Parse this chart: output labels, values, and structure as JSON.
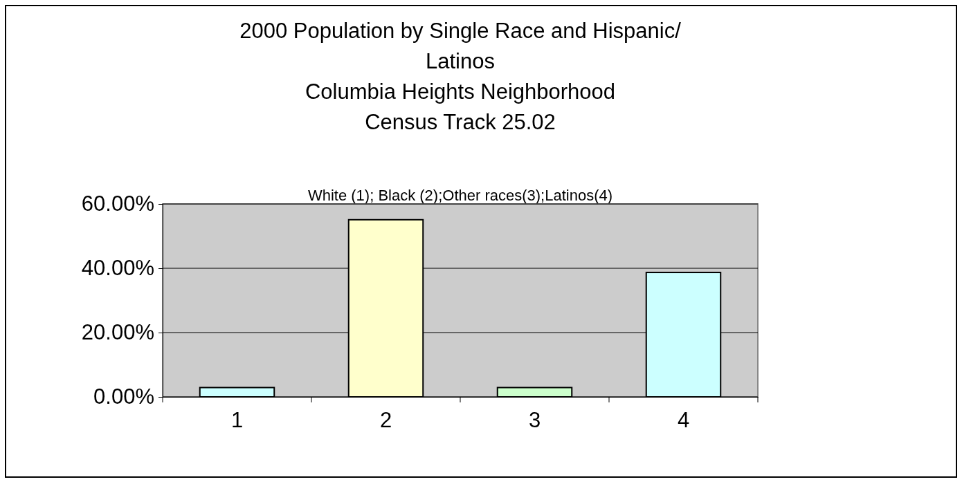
{
  "chart_data": {
    "type": "bar",
    "title": "2000 Population by Single Race and Hispanic/\nLatinos\nColumbia Heights Neighborhood\nCensus Track 25.02",
    "subtitle": "White (1); Black (2);Other races(3);Latinos(4)",
    "categories": [
      "1",
      "2",
      "3",
      "4"
    ],
    "values": [
      2.9,
      55.1,
      2.9,
      38.7
    ],
    "colors": [
      "#ccffff",
      "#ffffcc",
      "#ccffcc",
      "#ccffff"
    ],
    "ylim": [
      0,
      60
    ],
    "yticks": [
      {
        "value": 0,
        "label": "0.00%"
      },
      {
        "value": 20,
        "label": "20.00%"
      },
      {
        "value": 40,
        "label": "40.00%"
      },
      {
        "value": 60,
        "label": "60.00%"
      }
    ],
    "grid": "y"
  }
}
